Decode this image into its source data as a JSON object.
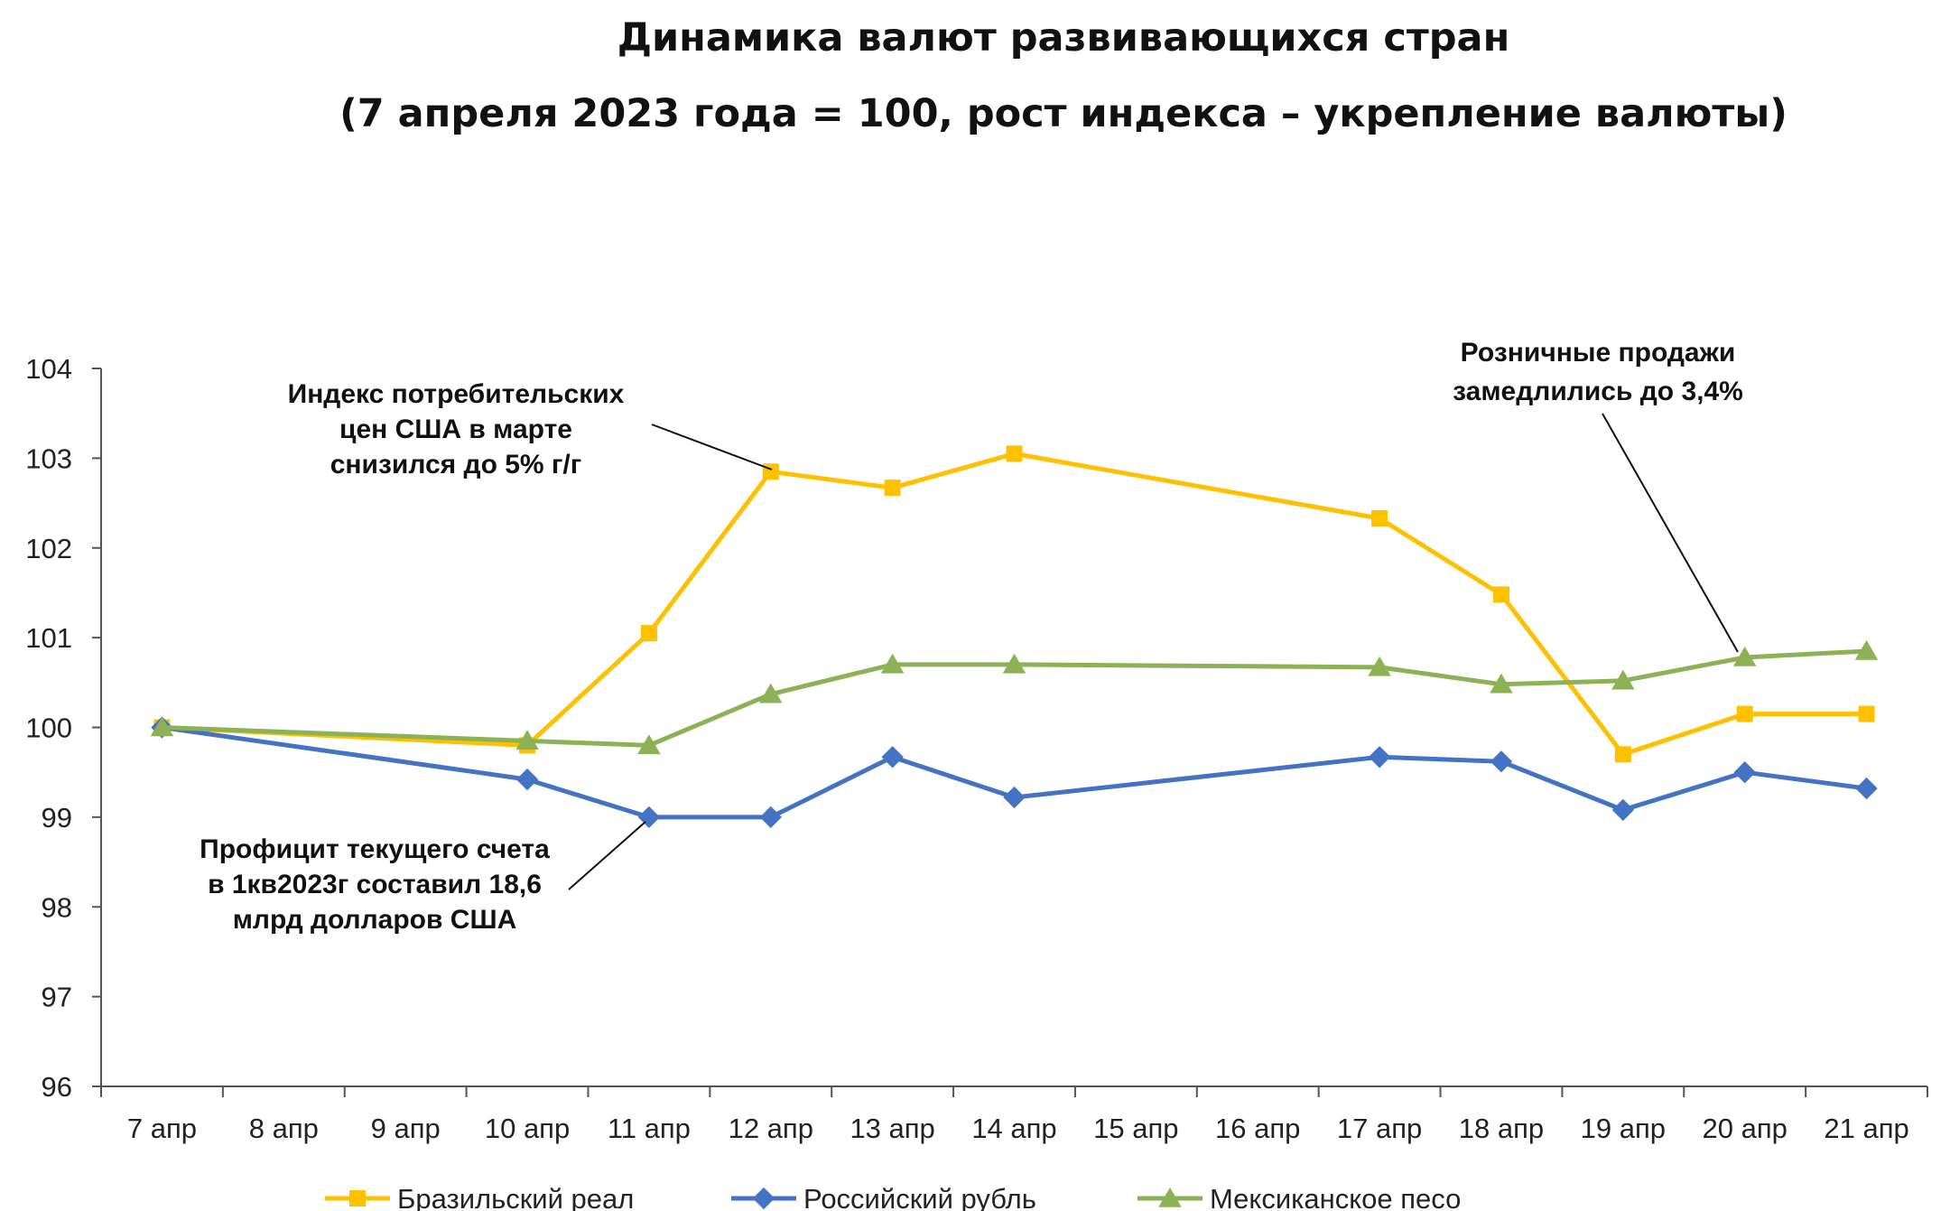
{
  "chart_data": {
    "type": "line",
    "title": "Динамика валют развивающихся стран",
    "subtitle": "(7 апреля 2023 года = 100, рост индекса – укрепление валюты)",
    "categories": [
      "7 апр",
      "8 апр",
      "9 апр",
      "10 апр",
      "11 апр",
      "12 апр",
      "13 апр",
      "14 апр",
      "15 апр",
      "16 апр",
      "17 апр",
      "18 апр",
      "19 апр",
      "20 апр",
      "21 апр"
    ],
    "ylim": [
      96,
      104
    ],
    "yticks": [
      "96",
      "97",
      "98",
      "99",
      "100",
      "101",
      "102",
      "103",
      "104"
    ],
    "grid": false,
    "legend_position": "bottom",
    "series": [
      {
        "name": "Бразильский реал",
        "color": "#FFC000",
        "marker": "square",
        "points": [
          [
            0,
            100.0
          ],
          [
            3,
            99.8
          ],
          [
            4,
            101.05
          ],
          [
            5,
            102.85
          ],
          [
            6,
            102.67
          ],
          [
            7,
            103.05
          ],
          [
            10,
            102.33
          ],
          [
            11,
            101.48
          ],
          [
            12,
            99.7
          ],
          [
            13,
            100.15
          ],
          [
            14,
            100.15
          ]
        ]
      },
      {
        "name": "Российский рубль",
        "color": "#4472C4",
        "marker": "diamond",
        "points": [
          [
            0,
            100.0
          ],
          [
            3,
            99.42
          ],
          [
            4,
            99.0
          ],
          [
            5,
            99.0
          ],
          [
            6,
            99.67
          ],
          [
            7,
            99.22
          ],
          [
            10,
            99.67
          ],
          [
            11,
            99.62
          ],
          [
            12,
            99.08
          ],
          [
            13,
            99.5
          ],
          [
            14,
            99.32
          ]
        ]
      },
      {
        "name": "Мексиканское песо",
        "color": "#8DB255",
        "marker": "triangle",
        "points": [
          [
            0,
            100.0
          ],
          [
            3,
            99.85
          ],
          [
            4,
            99.8
          ],
          [
            5,
            100.37
          ],
          [
            6,
            100.7
          ],
          [
            7,
            100.7
          ],
          [
            10,
            100.67
          ],
          [
            11,
            100.48
          ],
          [
            12,
            100.52
          ],
          [
            13,
            100.78
          ],
          [
            14,
            100.85
          ]
        ]
      }
    ],
    "annotations": [
      {
        "lines": [
          "Индекс потребительских",
          "цен США в марте",
          "снизился до 5% г/г"
        ],
        "target": {
          "series": 0,
          "x": 5,
          "y": 102.85
        }
      },
      {
        "lines": [
          "Профицит текущего счета",
          "в 1кв2023г составил 18,6",
          "млрд долларов США"
        ],
        "target": {
          "series": 1,
          "x": 4,
          "y": 99.0
        }
      },
      {
        "lines": [
          "Розничные продажи",
          "замедлились до 3,4%"
        ],
        "target": {
          "series": 2,
          "x": 13,
          "y": 100.78
        }
      }
    ]
  }
}
